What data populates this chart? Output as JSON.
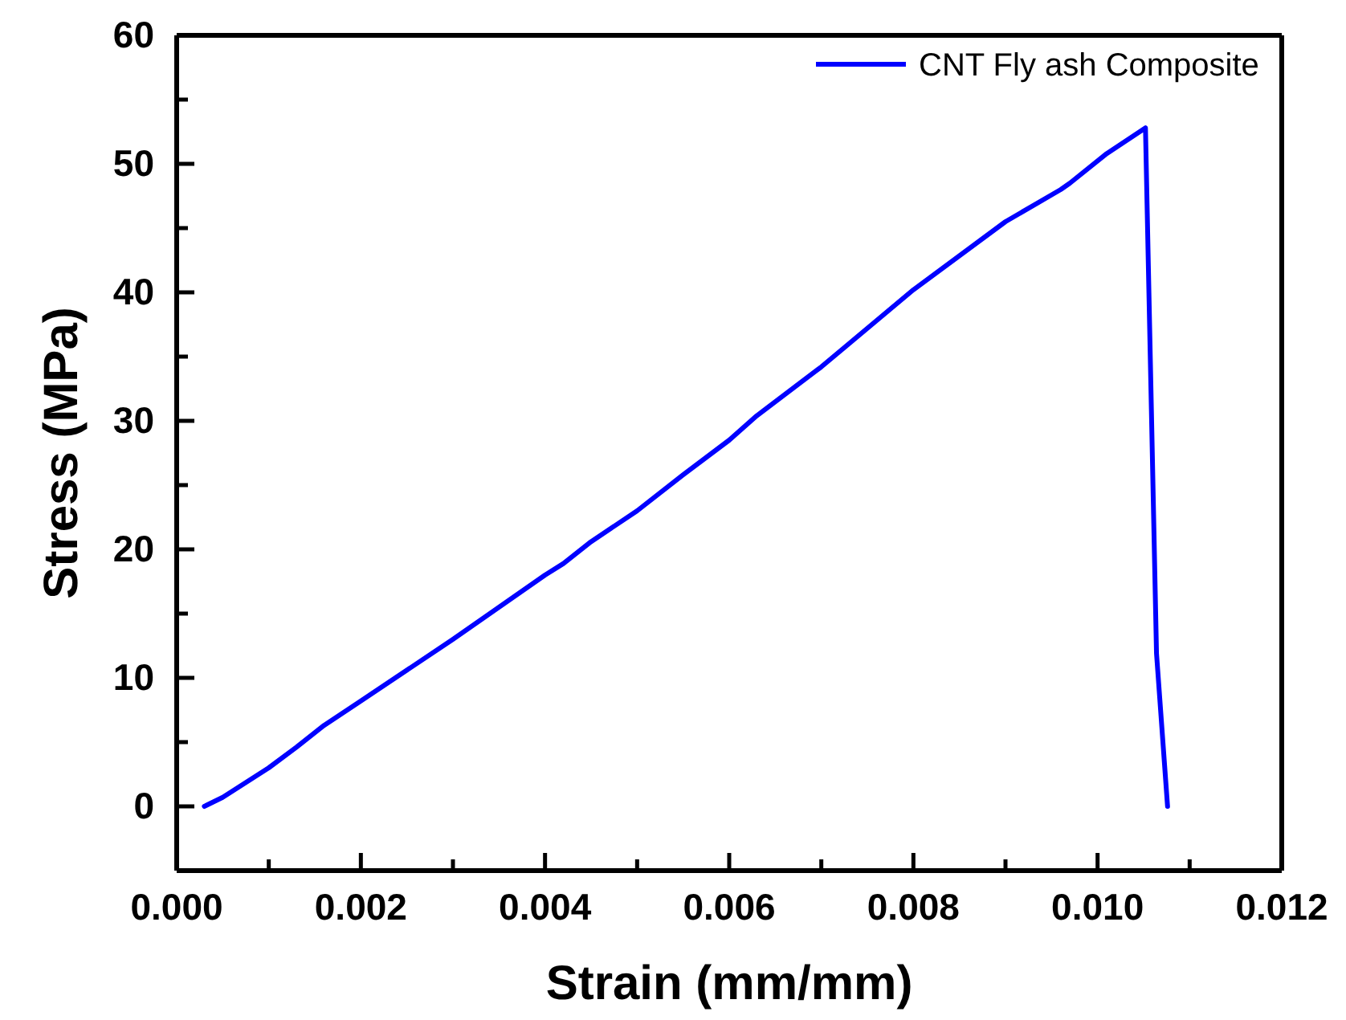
{
  "chart_data": {
    "type": "line",
    "xlabel": "Strain (mm/mm)",
    "ylabel": "Stress (MPa)",
    "xlim": [
      0,
      0.012
    ],
    "ylim": [
      -5,
      60
    ],
    "xticks": [
      {
        "value": 0,
        "label": "0.000"
      },
      {
        "value": 0.001,
        "label": null
      },
      {
        "value": 0.002,
        "label": "0.002"
      },
      {
        "value": 0.003,
        "label": null
      },
      {
        "value": 0.004,
        "label": "0.004"
      },
      {
        "value": 0.005,
        "label": null
      },
      {
        "value": 0.006,
        "label": "0.006"
      },
      {
        "value": 0.007,
        "label": null
      },
      {
        "value": 0.008,
        "label": "0.008"
      },
      {
        "value": 0.009,
        "label": null
      },
      {
        "value": 0.01,
        "label": "0.010"
      },
      {
        "value": 0.011,
        "label": null
      },
      {
        "value": 0.012,
        "label": "0.012"
      }
    ],
    "yticks": [
      {
        "value": -5,
        "label": null
      },
      0,
      {
        "value": 5,
        "label": null
      },
      10,
      {
        "value": 15,
        "label": null
      },
      20,
      {
        "value": 25,
        "label": null
      },
      30,
      {
        "value": 35,
        "label": null
      },
      40,
      {
        "value": 45,
        "label": null
      },
      50,
      {
        "value": 55,
        "label": null
      },
      60
    ],
    "legend": "top right",
    "grid": false,
    "marker": "none",
    "line_style": "solid",
    "series": [
      {
        "name": "CNT Fly ash Composite",
        "color": "#0000ff",
        "x": [
          0.0003,
          0.0005,
          0.001,
          0.0013,
          0.0016,
          0.002,
          0.003,
          0.004,
          0.0042,
          0.0045,
          0.005,
          0.0055,
          0.006,
          0.0063,
          0.007,
          0.0073,
          0.008,
          0.009,
          0.0096,
          0.0097,
          0.0101,
          0.01052,
          0.01064,
          0.01076
        ],
        "values": [
          0,
          0.7,
          3.0,
          4.6,
          6.3,
          8.2,
          13.0,
          18.0,
          18.9,
          20.6,
          23.0,
          25.8,
          28.5,
          30.4,
          34.2,
          36.0,
          40.2,
          45.5,
          48.0,
          48.5,
          50.8,
          52.8,
          11.9,
          0
        ]
      }
    ]
  }
}
